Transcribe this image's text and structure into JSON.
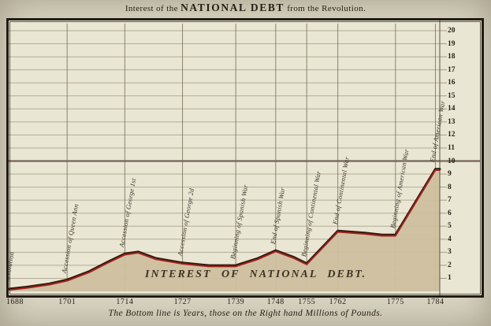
{
  "title": {
    "prefix": "Interest of the",
    "main": "NATIONAL DEBT",
    "suffix": "from the Revolution."
  },
  "caption": "The Bottom line is Years, those on the Right hand Millions of Pounds.",
  "chart_data": {
    "type": "area",
    "title": "Interest of the NATIONAL DEBT from the Revolution.",
    "inner_label": "INTEREST OF NATIONAL DEBT.",
    "caption": "The Bottom line is Years, those on the Right hand Millions of Pounds.",
    "x_unit": "Years",
    "y_unit": "Millions of Pounds",
    "xlim": [
      1688,
      1786
    ],
    "ylim": [
      0,
      20
    ],
    "x_ticks": [
      1688,
      1701,
      1714,
      1727,
      1739,
      1748,
      1755,
      1762,
      1775,
      1784
    ],
    "y_ticks": [
      1,
      2,
      3,
      4,
      5,
      6,
      7,
      8,
      9,
      10,
      11,
      12,
      13,
      14,
      15,
      16,
      17,
      18,
      19,
      20
    ],
    "reference_line_y": 10,
    "grid": true,
    "legend": "none",
    "series": [
      {
        "name": "Interest of National Debt (millions of pounds)",
        "points": [
          [
            1688,
            0.15
          ],
          [
            1692,
            0.3
          ],
          [
            1697,
            0.55
          ],
          [
            1701,
            0.85
          ],
          [
            1706,
            1.5
          ],
          [
            1710,
            2.2
          ],
          [
            1714,
            2.85
          ],
          [
            1717,
            3.0
          ],
          [
            1721,
            2.5
          ],
          [
            1727,
            2.15
          ],
          [
            1733,
            1.95
          ],
          [
            1739,
            1.95
          ],
          [
            1744,
            2.5
          ],
          [
            1748,
            3.1
          ],
          [
            1752,
            2.6
          ],
          [
            1755,
            2.1
          ],
          [
            1762,
            4.6
          ],
          [
            1768,
            4.45
          ],
          [
            1772,
            4.3
          ],
          [
            1775,
            4.3
          ],
          [
            1784,
            9.35
          ]
        ]
      }
    ],
    "events": [
      {
        "year": 1688,
        "label": "Revolution"
      },
      {
        "year": 1701,
        "label": "Accession of Queen Ann"
      },
      {
        "year": 1714,
        "label": "Accession of George 1st"
      },
      {
        "year": 1727,
        "label": "Accession of George 2d"
      },
      {
        "year": 1739,
        "label": "Beginning of Spanish War"
      },
      {
        "year": 1748,
        "label": "End of Spanish War"
      },
      {
        "year": 1755,
        "label": "Beginning of Continental War"
      },
      {
        "year": 1762,
        "label": "End of Continental War"
      },
      {
        "year": 1775,
        "label": "Beginning of American War"
      },
      {
        "year": 1784,
        "label": "End of American War"
      }
    ],
    "colors": {
      "page_bg": "#dad6c4",
      "plot_bg": "#e9e6d4",
      "area_fill": "#cdbf9e",
      "line_red": "#a3231f",
      "line_dark": "#301a10",
      "frame": "#211b13",
      "grid_horizontal": "#8a7e63",
      "grid_vertical": "#6e644e",
      "reference_line": "#6a564c",
      "text": "#262015"
    }
  }
}
